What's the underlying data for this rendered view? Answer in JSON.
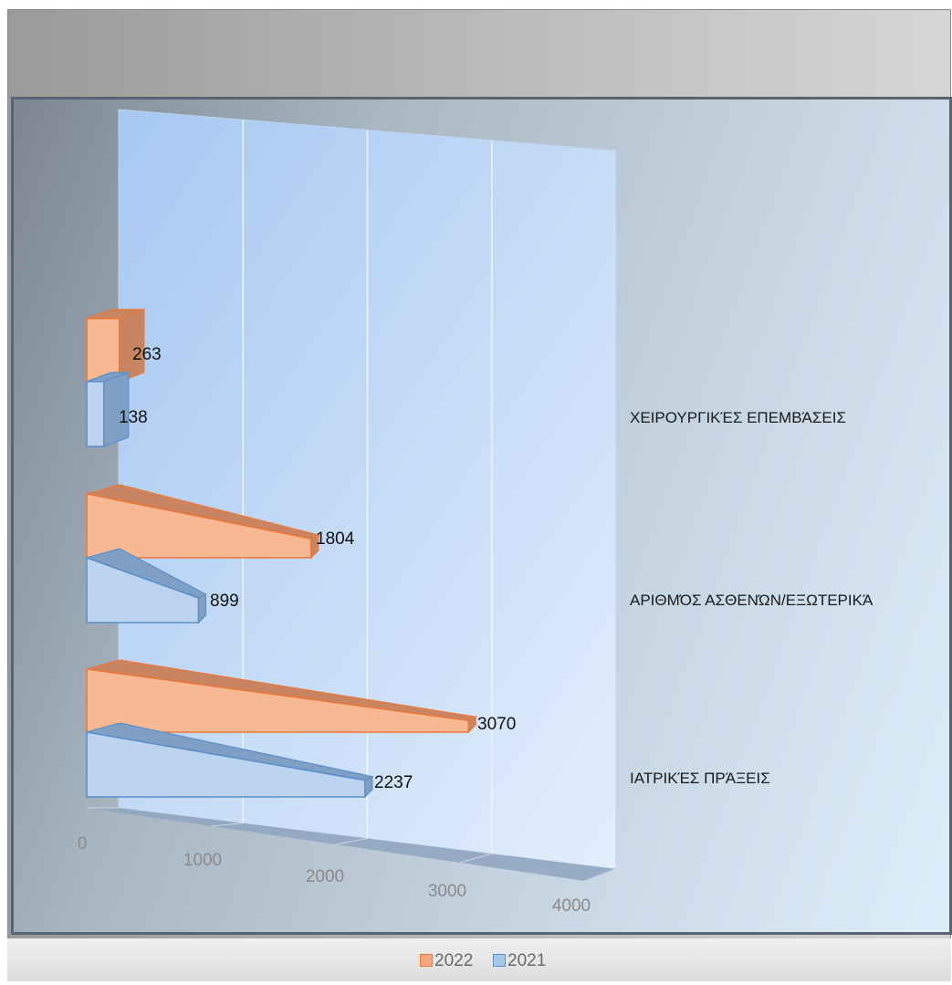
{
  "chart_data": {
    "type": "bar",
    "orientation": "horizontal",
    "style": "3d-pyramid",
    "categories": [
      "ΧΕΙΡΟΥΡΓΙΚΈΣ ΕΠΕΜΒΆΣΕΙΣ",
      "ΑΡΙΘΜΌΣ ΑΣΘΕΝΏΝ/ΕΞΩΤΕΡΙΚΆ",
      "ΙΑΤΡΙΚΈΣ ΠΡΆΞΕΙΣ"
    ],
    "series": [
      {
        "name": "2022",
        "values": [
          263,
          1804,
          3070
        ]
      },
      {
        "name": "2021",
        "values": [
          138,
          899,
          2237
        ]
      }
    ],
    "xlim": [
      0,
      4000
    ],
    "x_ticks": [
      "0",
      "1000",
      "2000",
      "3000",
      "4000"
    ],
    "grid": true,
    "legend_position": "bottom",
    "colors": {
      "2022": "#f7a57d",
      "2021": "#a7c8ea"
    }
  },
  "legend": {
    "items": [
      {
        "label": "2022",
        "color": "#f7a57d",
        "border": "#e8793d"
      },
      {
        "label": "2021",
        "color": "#a7c8ea",
        "border": "#5b8fc9"
      }
    ]
  }
}
